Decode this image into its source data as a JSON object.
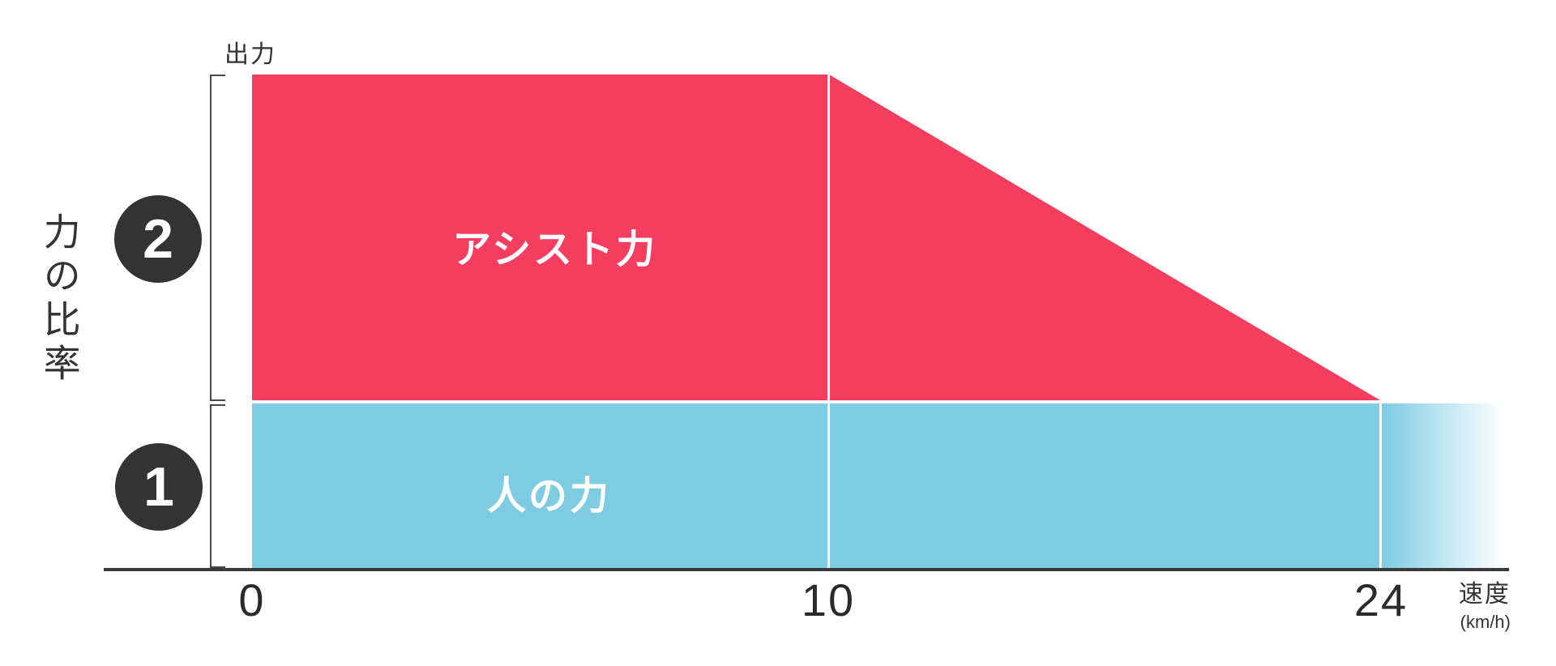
{
  "chart_data": {
    "type": "area",
    "description": "Stacked power-ratio diagram for a power-assisted bicycle: assist force is twice human force up to 10 km/h, tapers linearly to zero at 24 km/h; human force stays constant and fades out beyond 24 km/h",
    "x_axis": {
      "label": "速度",
      "unit_label": "(km/h)",
      "ticks": [
        "0",
        "10",
        "24"
      ],
      "range": [
        0,
        27
      ]
    },
    "y_axis": {
      "label": "力の比率",
      "top_label": "出力",
      "range": [
        0,
        3
      ],
      "gridlines": false
    },
    "legend_position": "labels inside areas",
    "series": [
      {
        "name": "アシスト力",
        "badge": "2",
        "color": "#f53e5f",
        "points": [
          {
            "x": 0,
            "ratio": 2
          },
          {
            "x": 10,
            "ratio": 2
          },
          {
            "x": 24,
            "ratio": 0
          }
        ]
      },
      {
        "name": "人の力",
        "badge": "1",
        "color": "#7ecce2",
        "points": [
          {
            "x": 0,
            "ratio": 1
          },
          {
            "x": 10,
            "ratio": 1
          },
          {
            "x": 24,
            "ratio": 1
          }
        ],
        "fades_beyond_last_tick": true
      }
    ]
  },
  "labels": {
    "y_axis_title": "力の比率",
    "output": "出力",
    "speed": "速度",
    "speed_unit": "(km/h)"
  },
  "areas": {
    "assist": {
      "label": "アシスト力",
      "badge": "2",
      "color": "#f53e5f"
    },
    "human": {
      "label": "人の力",
      "badge": "1",
      "color": "#7ecce2"
    }
  },
  "x_ticks": [
    "0",
    "10",
    "24"
  ],
  "colors": {
    "assist_pink": "#f53e5f",
    "human_blue": "#7ecce2",
    "badge_dark": "#333333",
    "axis_dark": "#3a3a3a",
    "background": "#ffffff"
  }
}
